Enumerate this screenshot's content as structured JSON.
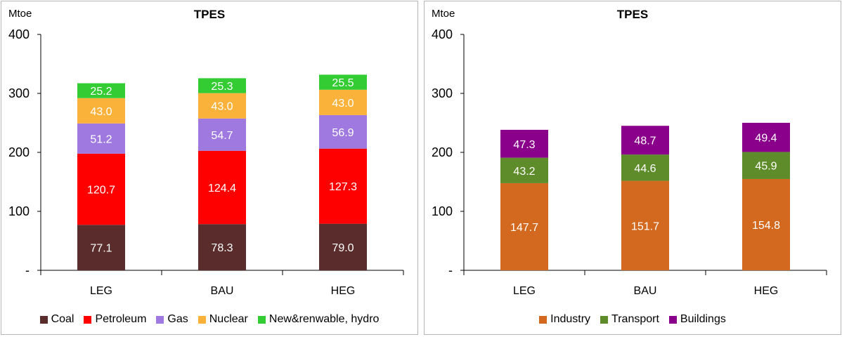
{
  "chart_data": [
    {
      "type": "bar",
      "stacked": true,
      "title": "TPES",
      "unit_label": "Mtoe",
      "ylim": [
        0,
        400
      ],
      "yticks": [
        "-",
        "100",
        "200",
        "300",
        "400"
      ],
      "grid": false,
      "legend_position": "bottom",
      "categories": [
        "LEG",
        "BAU",
        "HEG"
      ],
      "series": [
        {
          "name": "Coal",
          "color": "#5b2c2c",
          "values": [
            77.1,
            78.3,
            79.0
          ],
          "labels": [
            "77.1",
            "78.3",
            "79.0"
          ]
        },
        {
          "name": "Petroleum",
          "color": "#ff0000",
          "values": [
            120.7,
            124.4,
            127.3
          ],
          "labels": [
            "120.7",
            "124.4",
            "127.3"
          ]
        },
        {
          "name": "Gas",
          "color": "#9f79e0",
          "values": [
            51.2,
            54.7,
            56.9
          ],
          "labels": [
            "51.2",
            "54.7",
            "56.9"
          ]
        },
        {
          "name": "Nuclear",
          "color": "#fbb23b",
          "values": [
            43.0,
            43.0,
            43.0
          ],
          "labels": [
            "43.0",
            "43.0",
            "43.0"
          ]
        },
        {
          "name": "New&renwable, hydro",
          "color": "#33cc33",
          "values": [
            25.2,
            25.3,
            25.5
          ],
          "labels": [
            "25.2",
            "25.3",
            "25.5"
          ]
        }
      ]
    },
    {
      "type": "bar",
      "stacked": true,
      "title": "TPES",
      "unit_label": "Mtoe",
      "ylim": [
        0,
        400
      ],
      "yticks": [
        "-",
        "100",
        "200",
        "300",
        "400"
      ],
      "grid": false,
      "legend_position": "bottom",
      "categories": [
        "LEG",
        "BAU",
        "HEG"
      ],
      "series": [
        {
          "name": "Industry",
          "color": "#d2691e",
          "values": [
            147.7,
            151.7,
            154.8
          ],
          "labels": [
            "147.7",
            "151.7",
            "154.8"
          ]
        },
        {
          "name": "Transport",
          "color": "#5f8c2a",
          "values": [
            43.2,
            44.6,
            45.9
          ],
          "labels": [
            "43.2",
            "44.6",
            "45.9"
          ]
        },
        {
          "name": "Buildings",
          "color": "#8b008b",
          "values": [
            47.3,
            48.7,
            49.4
          ],
          "labels": [
            "47.3",
            "48.7",
            "49.4"
          ]
        }
      ]
    }
  ]
}
